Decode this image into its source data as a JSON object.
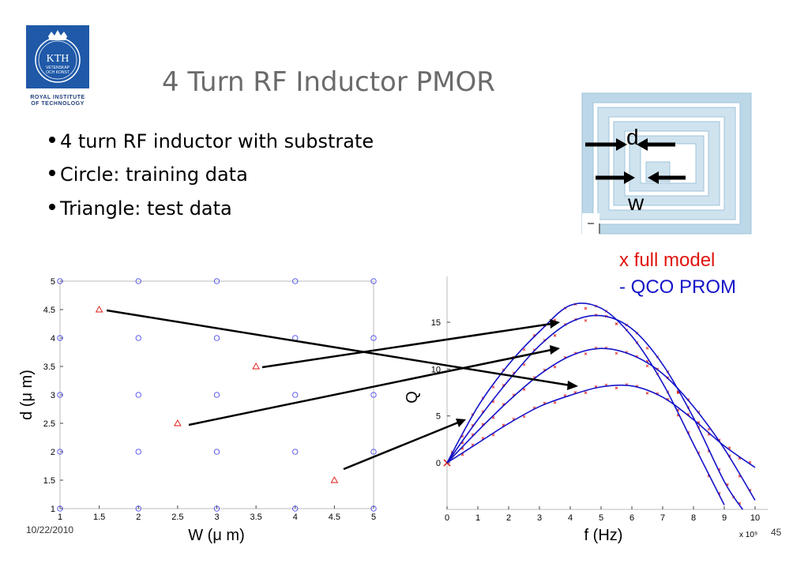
{
  "slide": {
    "title": "4 Turn RF Inductor PMOR",
    "bullets": [
      "4 turn RF inductor with substrate",
      "Circle: training data",
      "Triangle: test data"
    ],
    "date": "10/22/2010",
    "page_number": "45",
    "logo": {
      "text": "KTH",
      "sub1": "VETENSKAP",
      "sub2": "OCH KONST",
      "caption1": "ROYAL INSTITUTE",
      "caption2": "OF TECHNOLOGY"
    },
    "inset": {
      "label_d": "d",
      "label_w": "w"
    },
    "legend": {
      "full_model": "x full model",
      "prom": "- QCO PROM"
    },
    "colors": {
      "marker_red": "#e0140f",
      "curve_blue": "#1414c8",
      "title_gray": "#6b6b6b",
      "logo_blue": "#1f59a8"
    }
  },
  "chart_data": [
    {
      "type": "scatter",
      "xlabel": "W (μ m)",
      "ylabel": "d (μ m)",
      "xlim": [
        1,
        5
      ],
      "ylim": [
        1,
        5
      ],
      "xticks": [
        "1",
        "1.5",
        "2",
        "2.5",
        "3",
        "3.5",
        "4",
        "4.5",
        "5"
      ],
      "yticks": [
        "1",
        "1.5",
        "2",
        "2.5",
        "3",
        "3.5",
        "4",
        "4.5",
        "5"
      ],
      "training": {
        "marker": "circle",
        "points": [
          [
            1,
            5
          ],
          [
            2,
            5
          ],
          [
            3,
            5
          ],
          [
            4,
            5
          ],
          [
            5,
            5
          ],
          [
            2,
            4
          ],
          [
            3,
            4
          ],
          [
            4,
            4
          ],
          [
            5,
            4
          ],
          [
            1,
            3
          ],
          [
            2,
            3
          ],
          [
            3,
            3
          ],
          [
            4,
            3
          ],
          [
            5,
            3
          ],
          [
            2,
            2
          ],
          [
            3,
            2
          ],
          [
            4,
            2
          ],
          [
            1,
            1
          ],
          [
            2,
            1
          ],
          [
            3,
            1
          ],
          [
            4,
            1
          ],
          [
            5,
            1
          ],
          [
            1,
            2
          ],
          [
            5,
            2
          ],
          [
            1,
            4
          ]
        ]
      },
      "test": {
        "marker": "triangle",
        "points": [
          [
            1.5,
            4.5
          ],
          [
            3.5,
            3.5
          ],
          [
            2.5,
            2.5
          ],
          [
            4.5,
            1.5
          ]
        ]
      }
    },
    {
      "type": "line",
      "xlabel": "f (Hz)",
      "ylabel": "Q",
      "x_multiplier": "x 10⁹",
      "xlim": [
        0,
        10.5
      ],
      "ylim": [
        -5,
        20
      ],
      "xticks": [
        "0",
        "1",
        "2",
        "3",
        "4",
        "5",
        "6",
        "7",
        "8",
        "9",
        "10"
      ],
      "yticks": [
        "0",
        "5",
        "10",
        "15"
      ],
      "series": [
        {
          "x": [
            0,
            1,
            2,
            3,
            4,
            5,
            6,
            7,
            8,
            9
          ],
          "y": [
            0,
            6.0,
            10.5,
            14.0,
            16.8,
            16.5,
            13.5,
            8.5,
            2.0,
            -4.5
          ]
        },
        {
          "x": [
            0,
            1,
            2,
            3,
            4,
            5,
            6,
            7,
            8,
            9,
            9.6
          ],
          "y": [
            0,
            4.6,
            8.8,
            12.5,
            15.0,
            15.7,
            14.3,
            10.5,
            4.8,
            -2.0,
            -5.0
          ]
        },
        {
          "x": [
            0,
            1,
            2,
            3,
            4,
            5,
            6,
            7,
            8,
            9,
            10
          ],
          "y": [
            0,
            3.4,
            6.6,
            9.4,
            11.4,
            12.2,
            11.5,
            9.5,
            6.0,
            1.5,
            -4.0
          ]
        },
        {
          "x": [
            0,
            1,
            2,
            3,
            4,
            5,
            6,
            7,
            8,
            9,
            10
          ],
          "y": [
            0,
            2.1,
            4.2,
            6.0,
            7.2,
            8.1,
            8.2,
            7.0,
            4.6,
            1.8,
            -0.5
          ]
        }
      ],
      "full_model_markers": {
        "marker": "x",
        "description_series_note": "scattered red x marks along each curve"
      }
    }
  ]
}
